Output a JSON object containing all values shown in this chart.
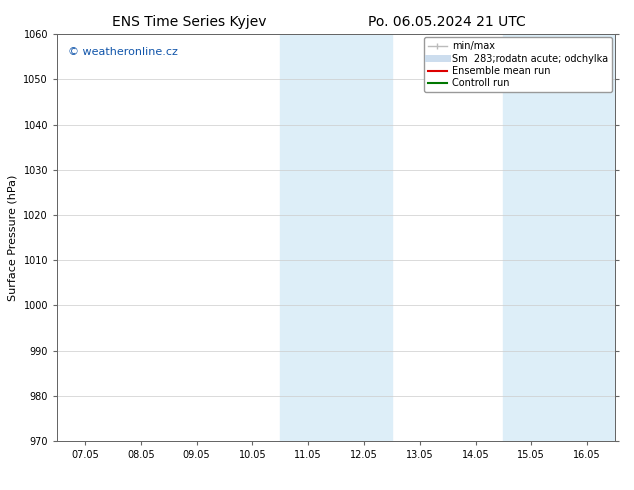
{
  "title_left": "ENS Time Series Kyjev",
  "title_right": "Po. 06.05.2024 21 UTC",
  "ylabel": "Surface Pressure (hPa)",
  "xlim_labels": [
    "07.05",
    "08.05",
    "09.05",
    "10.05",
    "11.05",
    "12.05",
    "13.05",
    "14.05",
    "15.05",
    "16.05"
  ],
  "x_positions": [
    0,
    1,
    2,
    3,
    4,
    5,
    6,
    7,
    8,
    9
  ],
  "x_min": -0.5,
  "x_max": 9.5,
  "ylim": [
    970,
    1060
  ],
  "yticks": [
    970,
    980,
    990,
    1000,
    1010,
    1020,
    1030,
    1040,
    1050,
    1060
  ],
  "shaded_regions": [
    {
      "xstart": 3.5,
      "xend": 5.5
    },
    {
      "xstart": 7.5,
      "xend": 9.5
    }
  ],
  "shade_color": "#ddeef8",
  "background_color": "#ffffff",
  "watermark_text": "© weatheronline.cz",
  "watermark_color": "#1155aa",
  "legend_entries": [
    {
      "label": "min/max",
      "color": "#bbbbbb",
      "lw": 1.0
    },
    {
      "label": "Sm  283;rodatn acute; odchylka",
      "color": "#ccddee",
      "lw": 5
    },
    {
      "label": "Ensemble mean run",
      "color": "#dd0000",
      "lw": 1.5
    },
    {
      "label": "Controll run",
      "color": "#007700",
      "lw": 1.5
    }
  ],
  "grid_color": "#cccccc",
  "tick_label_fontsize": 7,
  "title_fontsize": 10,
  "ylabel_fontsize": 8,
  "watermark_fontsize": 8,
  "legend_fontsize": 7
}
